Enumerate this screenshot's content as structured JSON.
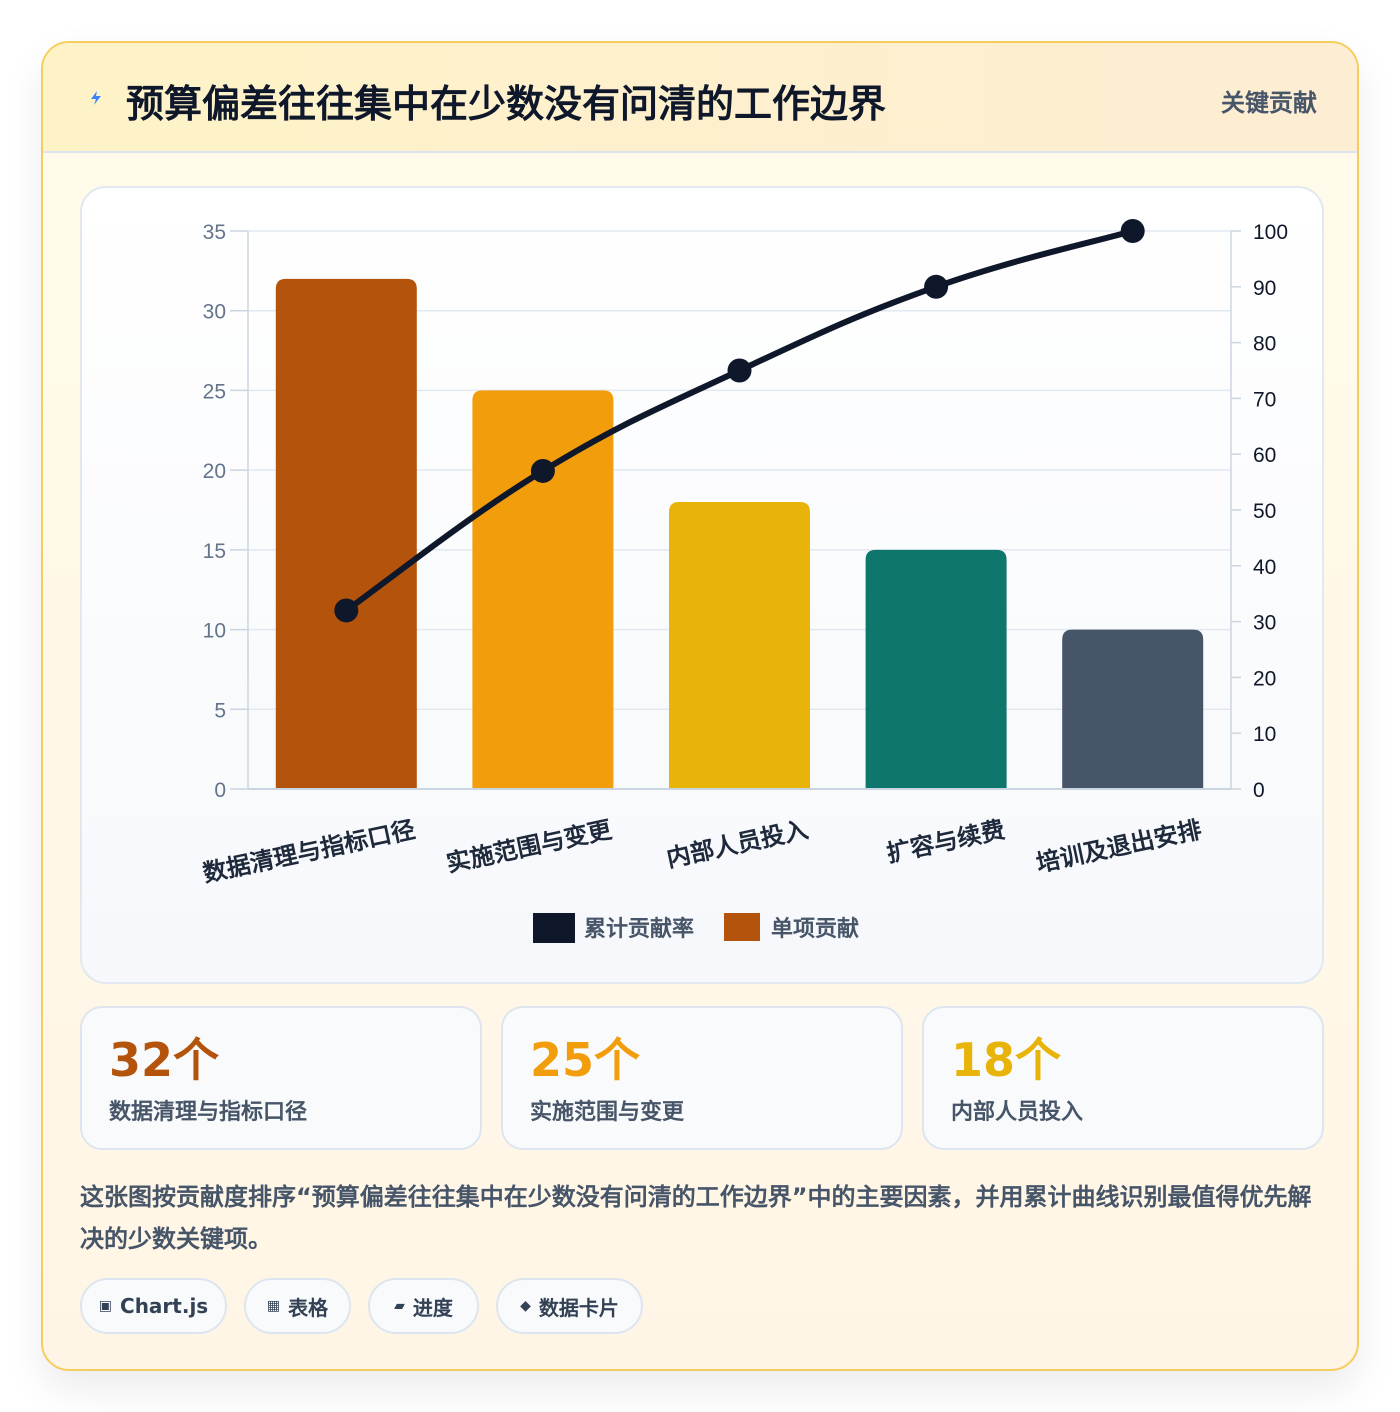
{
  "header": {
    "icon": "lightning-icon",
    "title": "预算偏差往往集中在少数没有问清的工作边界",
    "badge": "关键贡献"
  },
  "chart_data": {
    "type": "bar",
    "categories": [
      "数据清理与指标口径",
      "实施范围与变更",
      "内部人员投入",
      "扩容与续费",
      "培训及退出安排"
    ],
    "series": [
      {
        "name": "单项贡献",
        "type": "bar",
        "axis": "left",
        "values": [
          32,
          25,
          18,
          15,
          10
        ],
        "colors": [
          "#b4530c",
          "#f29e0c",
          "#e8b40a",
          "#0f766e",
          "#475569"
        ]
      },
      {
        "name": "累计贡献率",
        "type": "line",
        "axis": "right",
        "values": [
          32,
          57,
          75,
          90,
          100
        ],
        "color": "#0f172a"
      }
    ],
    "ylim": [
      0,
      35
    ],
    "yticks": [
      0,
      5,
      10,
      15,
      20,
      25,
      30,
      35
    ],
    "y2lim": [
      0,
      100
    ],
    "y2ticks": [
      0,
      10,
      20,
      30,
      40,
      50,
      60,
      70,
      80,
      90,
      100
    ],
    "legend": [
      "累计贡献率",
      "单项贡献"
    ],
    "legend_position": "bottom",
    "grid": true
  },
  "stats": [
    {
      "value": "32个",
      "label": "数据清理与指标口径",
      "color": "#b4530c"
    },
    {
      "value": "25个",
      "label": "实施范围与变更",
      "color": "#f29e0c"
    },
    {
      "value": "18个",
      "label": "内部人员投入",
      "color": "#e8b40a"
    }
  ],
  "description": "这张图按贡献度排序“预算偏差往往集中在少数没有问清的工作边界”中的主要因素，并用累计曲线识别最值得优先解决的少数关键项。",
  "tags": [
    {
      "icon": "square-icon",
      "glyph": "▣",
      "label": "Chart.js"
    },
    {
      "icon": "table-icon",
      "glyph": "▦",
      "label": "表格"
    },
    {
      "icon": "progress-icon",
      "glyph": "▰",
      "label": "进度"
    },
    {
      "icon": "diamond-icon",
      "glyph": "◆",
      "label": "数据卡片"
    }
  ]
}
